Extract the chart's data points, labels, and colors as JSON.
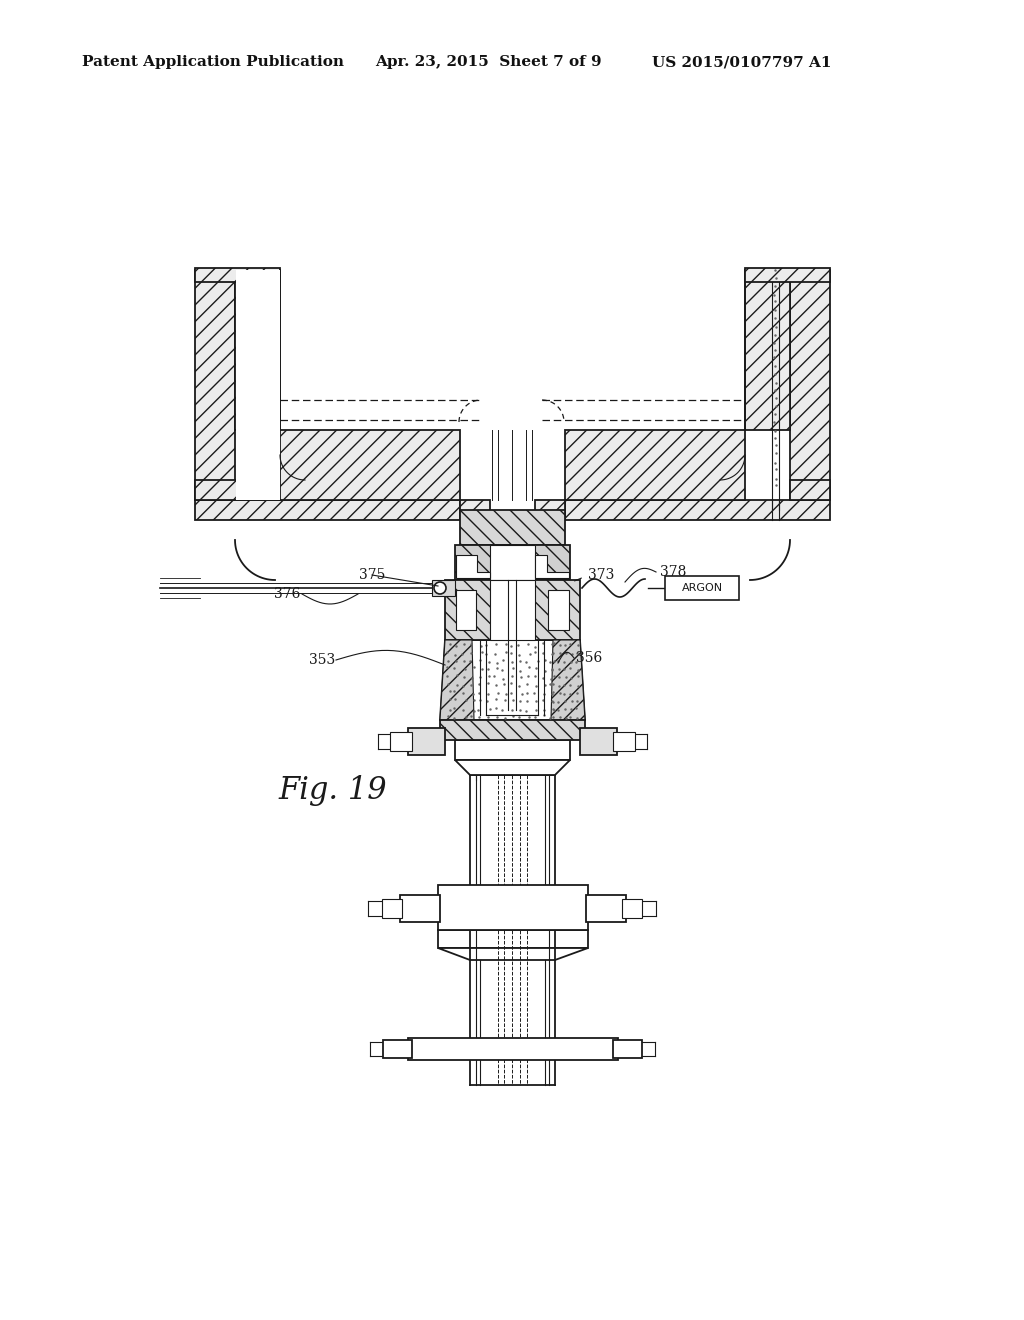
{
  "title_left": "Patent Application Publication",
  "title_center": "Apr. 23, 2015  Sheet 7 of 9",
  "title_right": "US 2015/0107797 A1",
  "fig_label": "Fig. 19",
  "background_color": "#ffffff",
  "line_color": "#1a1a1a",
  "text_color": "#111111"
}
